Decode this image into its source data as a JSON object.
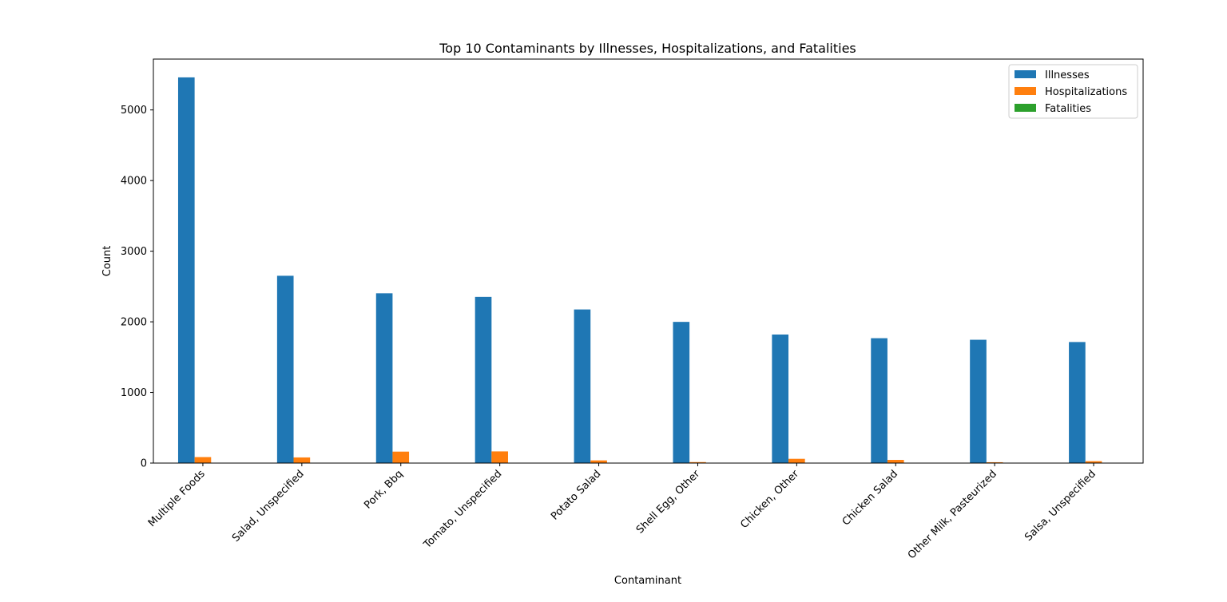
{
  "chart_data": {
    "type": "bar",
    "title": "Top 10 Contaminants by Illnesses, Hospitalizations, and Fatalities",
    "xlabel": "Contaminant",
    "ylabel": "Count",
    "ylim": [
      0,
      5720
    ],
    "yticks": [
      0,
      1000,
      2000,
      3000,
      4000,
      5000
    ],
    "categories": [
      "Multiple Foods",
      "Salad, Unspecified",
      "Pork, Bbq",
      "Tomato, Unspecified",
      "Potato Salad",
      "Shell Egg, Other",
      "Chicken, Other",
      "Chicken Salad",
      "Other Milk, Pasteurized",
      "Salsa, Unspecified"
    ],
    "series": [
      {
        "name": "Illnesses",
        "color": "#1f77b4",
        "values": [
          5461,
          2652,
          2404,
          2353,
          2175,
          1999,
          1820,
          1768,
          1746,
          1714
        ]
      },
      {
        "name": "Hospitalizations",
        "color": "#ff7f0e",
        "values": [
          85,
          80,
          162,
          165,
          38,
          14,
          60,
          45,
          12,
          27
        ]
      },
      {
        "name": "Fatalities",
        "color": "#2ca02c",
        "values": [
          2,
          0,
          1,
          1,
          0,
          1,
          2,
          1,
          0,
          0
        ]
      }
    ],
    "legend": "top-right",
    "grid": false
  }
}
